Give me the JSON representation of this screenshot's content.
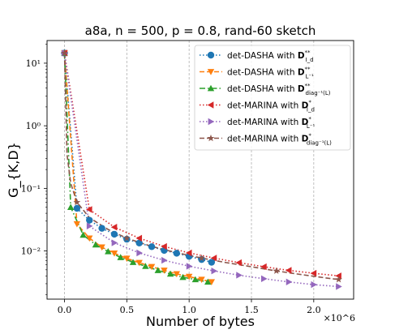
{
  "chart_data": {
    "type": "line",
    "title": "a8a, n = 500, p = 0.8, rand-60 sketch",
    "xlabel": "Number of bytes",
    "ylabel": "G_{K,D}",
    "x_multiplier_label": "×10^6",
    "xscale": "linear",
    "yscale": "log",
    "xlim": [
      -0.14,
      2.32
    ],
    "ylim": [
      0.0017,
      23
    ],
    "x_ticks": [
      0.0,
      0.5,
      1.0,
      1.5,
      2.0
    ],
    "x_tick_labels": [
      "0.0",
      "0.5",
      "1.0",
      "1.5",
      "2.0"
    ],
    "y_ticks": [
      0.01,
      0.1,
      1,
      10
    ],
    "y_tick_labels": [
      "10⁻²",
      "10⁻¹",
      "10⁰",
      "10¹"
    ],
    "grid": "vertical-dashed",
    "legend_position": "top-right",
    "series": [
      {
        "name": "det-DASHA with D**_{I_d}",
        "legend_main": "det-DASHA with ",
        "legend_bold": "D",
        "legend_sup": "**",
        "legend_sub": "I_d",
        "color": "#1f77b4",
        "dash": "dotted",
        "marker": "circle",
        "x": [
          0.0,
          0.1,
          0.2,
          0.3,
          0.4,
          0.5,
          0.6,
          0.7,
          0.8,
          0.9,
          1.0,
          1.1,
          1.18
        ],
        "y": [
          14.5,
          0.048,
          0.031,
          0.023,
          0.0185,
          0.0154,
          0.0134,
          0.0117,
          0.0102,
          0.0092,
          0.0082,
          0.0073,
          0.0066
        ]
      },
      {
        "name": "det-DASHA with D**_{L^-1}",
        "legend_main": "det-DASHA with ",
        "legend_bold": "D",
        "legend_sup": "**",
        "legend_sub": "L⁻¹",
        "color": "#ff7f0e",
        "dash": "dashed",
        "marker": "triangle-down",
        "x": [
          0.0,
          0.1,
          0.2,
          0.3,
          0.4,
          0.5,
          0.6,
          0.7,
          0.8,
          0.9,
          1.0,
          1.1,
          1.18
        ],
        "y": [
          14.5,
          0.027,
          0.016,
          0.0115,
          0.0092,
          0.0076,
          0.0065,
          0.0056,
          0.0049,
          0.0043,
          0.0039,
          0.0035,
          0.0032
        ]
      },
      {
        "name": "det-DASHA with D**_{diag^-1(L)}",
        "legend_main": "det-DASHA with ",
        "legend_bold": "D",
        "legend_sup": "**",
        "legend_sub": "diag⁻¹(L)",
        "color": "#2ca02c",
        "dash": "dashdot",
        "marker": "triangle-up",
        "x": [
          0.0,
          0.05,
          0.15,
          0.25,
          0.35,
          0.45,
          0.55,
          0.65,
          0.75,
          0.85,
          0.95,
          1.05,
          1.15
        ],
        "y": [
          14.5,
          0.05,
          0.018,
          0.0126,
          0.0098,
          0.0079,
          0.0066,
          0.0057,
          0.0049,
          0.0043,
          0.0038,
          0.0035,
          0.0032
        ]
      },
      {
        "name": "det-MARINA with D*_{I_d}",
        "legend_main": "det-MARINA with ",
        "legend_bold": "D",
        "legend_sup": "*",
        "legend_sub": "I_d",
        "color": "#d62728",
        "dash": "dotted",
        "marker": "triangle-left",
        "x": [
          0.0,
          0.2,
          0.4,
          0.6,
          0.8,
          1.0,
          1.2,
          1.4,
          1.6,
          1.8,
          2.0,
          2.2
        ],
        "y": [
          14.5,
          0.046,
          0.024,
          0.016,
          0.0118,
          0.0093,
          0.0077,
          0.0065,
          0.0056,
          0.0049,
          0.0044,
          0.004
        ]
      },
      {
        "name": "det-MARINA with D*_{L^-1}",
        "legend_main": "det-MARINA with ",
        "legend_bold": "D",
        "legend_sup": "*",
        "legend_sub": "L⁻¹",
        "color": "#9467bd",
        "dash": "dotted",
        "marker": "triangle-right",
        "x": [
          0.0,
          0.2,
          0.4,
          0.6,
          0.8,
          1.0,
          1.2,
          1.4,
          1.6,
          1.8,
          2.0,
          2.2
        ],
        "y": [
          14.5,
          0.025,
          0.0135,
          0.0093,
          0.0071,
          0.0057,
          0.0048,
          0.0041,
          0.0036,
          0.0032,
          0.0029,
          0.0027
        ]
      },
      {
        "name": "det-MARINA with D*_{diag^-1(L)}",
        "legend_main": "det-MARINA with ",
        "legend_bold": "D",
        "legend_sup": "*",
        "legend_sub": "diag⁻¹(L)",
        "color": "#8c564b",
        "dash": "dashed",
        "marker": "star",
        "x": [
          0.0,
          0.02,
          0.05,
          0.1,
          0.2,
          0.35,
          0.5,
          0.7,
          0.9,
          1.1,
          1.3,
          1.5,
          1.7,
          1.9,
          2.1,
          2.2
        ],
        "y": [
          14.5,
          0.35,
          0.12,
          0.06,
          0.034,
          0.022,
          0.016,
          0.0118,
          0.0094,
          0.0077,
          0.0065,
          0.0056,
          0.0048,
          0.0042,
          0.0037,
          0.0035
        ]
      }
    ]
  }
}
